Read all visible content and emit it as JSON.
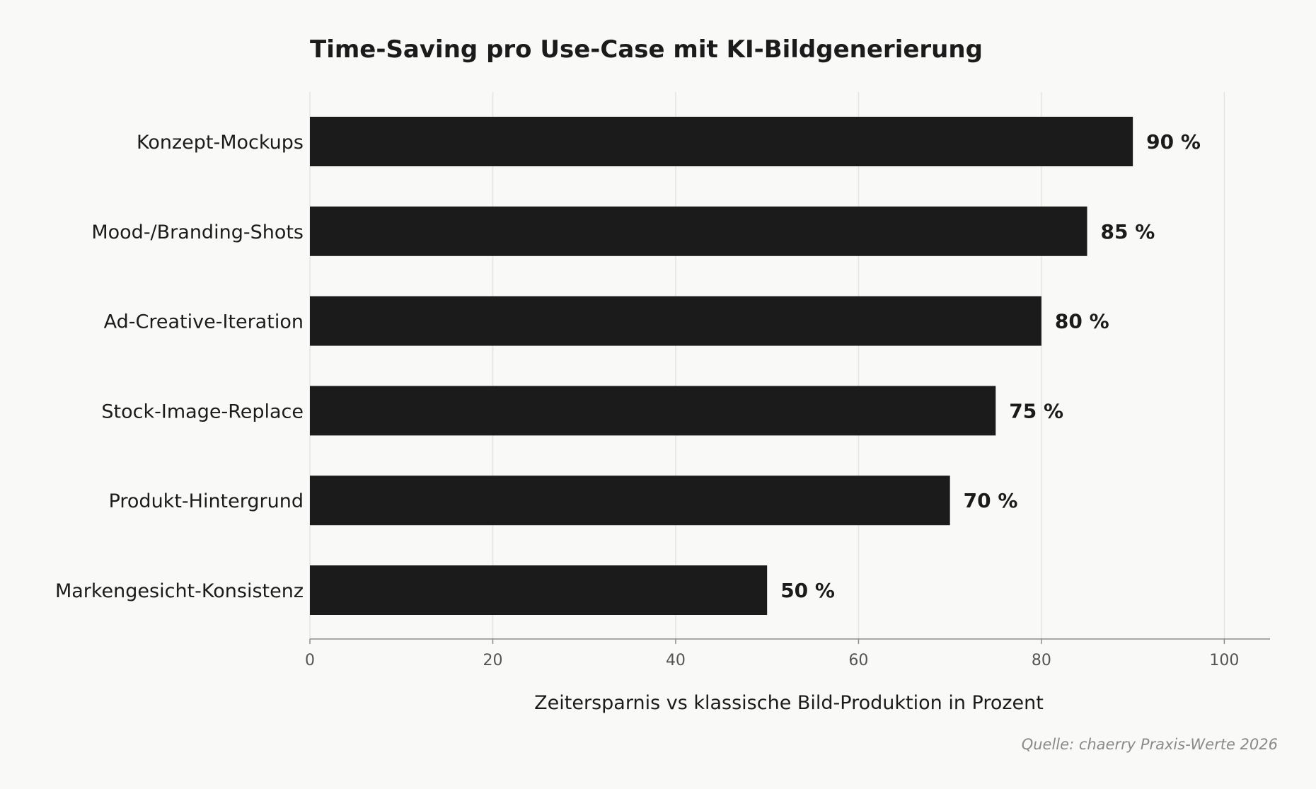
{
  "chart_data": {
    "type": "bar",
    "orientation": "horizontal",
    "title": "Time-Saving pro Use-Case mit KI-Bildgenerierung",
    "xlabel": "Zeitersparnis vs klassische Bild-Produktion in Prozent",
    "ylabel": "",
    "categories": [
      "Konzept-Mockups",
      "Mood-/Branding-Shots",
      "Ad-Creative-Iteration",
      "Stock-Image-Replace",
      "Produkt-Hintergrund",
      "Markengesicht-Konsistenz"
    ],
    "values": [
      90,
      85,
      80,
      75,
      70,
      50
    ],
    "value_labels": [
      "90 %",
      "85 %",
      "80 %",
      "75 %",
      "70 %",
      "50 %"
    ],
    "xlim": [
      0,
      105
    ],
    "xticks": [
      0,
      20,
      40,
      60,
      80,
      100
    ],
    "xtick_labels": [
      "0",
      "20",
      "40",
      "60",
      "80",
      "100"
    ],
    "grid": "vertical",
    "bar_color": "#1b1b1b",
    "source": "Quelle: chaerry Praxis-Werte 2026"
  }
}
